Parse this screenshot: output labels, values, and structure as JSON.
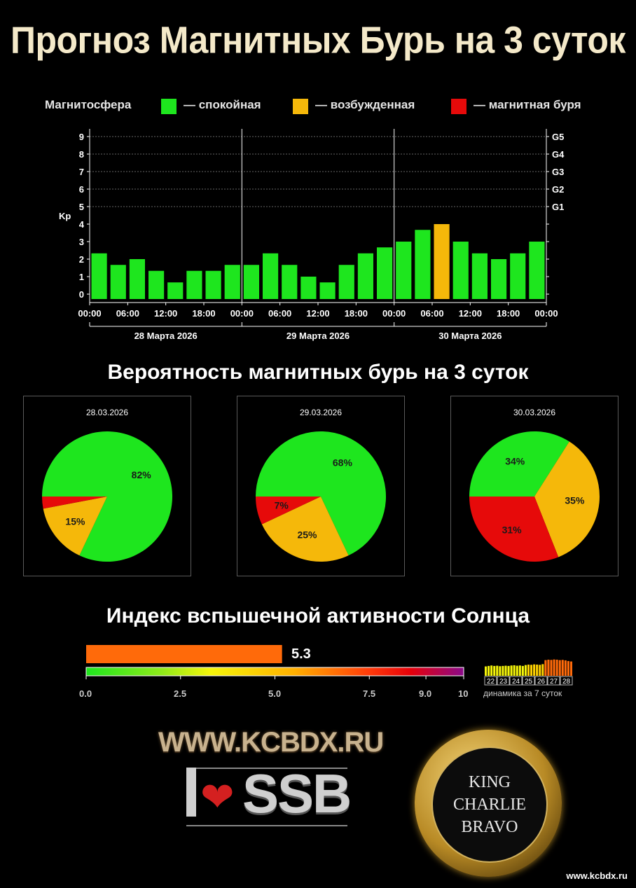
{
  "title": "Прогноз Магнитных Бурь на 3 суток",
  "legend": {
    "label": "Магнитосфера",
    "items": [
      {
        "text": "— спокойная",
        "color": "#1ee61e"
      },
      {
        "text": "— возбужденная",
        "color": "#f5b80a"
      },
      {
        "text": "— магнитная буря",
        "color": "#e60a0a"
      }
    ]
  },
  "colors": {
    "quiet": "#1ee61e",
    "active": "#f5b80a",
    "storm": "#e60a0a"
  },
  "chart_data": [
    {
      "type": "bar",
      "ylabel": "Kp",
      "ylim": [
        0,
        9
      ],
      "y_ticks": [
        "0",
        "1",
        "2",
        "3",
        "4",
        "5",
        "6",
        "7",
        "8",
        "9"
      ],
      "right_ticks": [
        {
          "kp": 5,
          "label": "G1"
        },
        {
          "kp": 6,
          "label": "G2"
        },
        {
          "kp": 7,
          "label": "G3"
        },
        {
          "kp": 8,
          "label": "G4"
        },
        {
          "kp": 9,
          "label": "G5"
        }
      ],
      "x_ticks": [
        "00:00",
        "06:00",
        "12:00",
        "18:00",
        "00:00",
        "06:00",
        "12:00",
        "18:00",
        "00:00",
        "06:00",
        "12:00",
        "18:00",
        "00:00"
      ],
      "days": [
        "28 Марта 2026",
        "29 Марта 2026",
        "30 Марта 2026"
      ],
      "values": [
        2.33,
        1.67,
        2.0,
        1.33,
        0.67,
        1.33,
        1.33,
        1.67,
        1.67,
        2.33,
        1.67,
        1.0,
        0.67,
        1.67,
        2.33,
        2.67,
        3.0,
        3.67,
        4.0,
        3.0,
        2.33,
        2.0,
        2.33,
        3.0
      ],
      "bar_levels": [
        "quiet",
        "quiet",
        "quiet",
        "quiet",
        "quiet",
        "quiet",
        "quiet",
        "quiet",
        "quiet",
        "quiet",
        "quiet",
        "quiet",
        "quiet",
        "quiet",
        "quiet",
        "quiet",
        "quiet",
        "quiet",
        "active",
        "quiet",
        "quiet",
        "quiet",
        "quiet",
        "quiet"
      ],
      "grid": true
    },
    {
      "type": "pie",
      "title": "28.03.2026",
      "slices": [
        {
          "level": "quiet",
          "value": 82,
          "label": "82%"
        },
        {
          "level": "active",
          "value": 15,
          "label": "15%"
        },
        {
          "level": "storm",
          "value": 3,
          "label": ""
        }
      ]
    },
    {
      "type": "pie",
      "title": "29.03.2026",
      "slices": [
        {
          "level": "quiet",
          "value": 68,
          "label": "68%"
        },
        {
          "level": "active",
          "value": 25,
          "label": "25%"
        },
        {
          "level": "storm",
          "value": 7,
          "label": "7%"
        }
      ]
    },
    {
      "type": "pie",
      "title": "30.03.2026",
      "slices": [
        {
          "level": "quiet",
          "value": 34,
          "label": "34%"
        },
        {
          "level": "active",
          "value": 35,
          "label": "35%"
        },
        {
          "level": "storm",
          "value": 31,
          "label": "31%"
        }
      ]
    }
  ],
  "probability_title": "Вероятность магнитных бурь на 3 суток",
  "flare": {
    "title": "Индекс вспышечной активности Солнца",
    "value": 5.3,
    "value_label": "5.3",
    "bar_color": "#ff6a0a",
    "scale_max": 10,
    "scale_ticks": [
      "0.0",
      "2.5",
      "5.0",
      "7.5",
      "9.0",
      "10"
    ],
    "dynamics_days": [
      "22",
      "23",
      "24",
      "25",
      "26",
      "27",
      "28"
    ],
    "dynamics_label": "динамика за 7 суток"
  },
  "branding": {
    "site": "WWW.KCBDX.RU",
    "ssb": "SSB",
    "coin_lines": [
      "KING",
      "CHARLIE",
      "BRAVO"
    ],
    "footer": "www.kcbdx.ru"
  }
}
